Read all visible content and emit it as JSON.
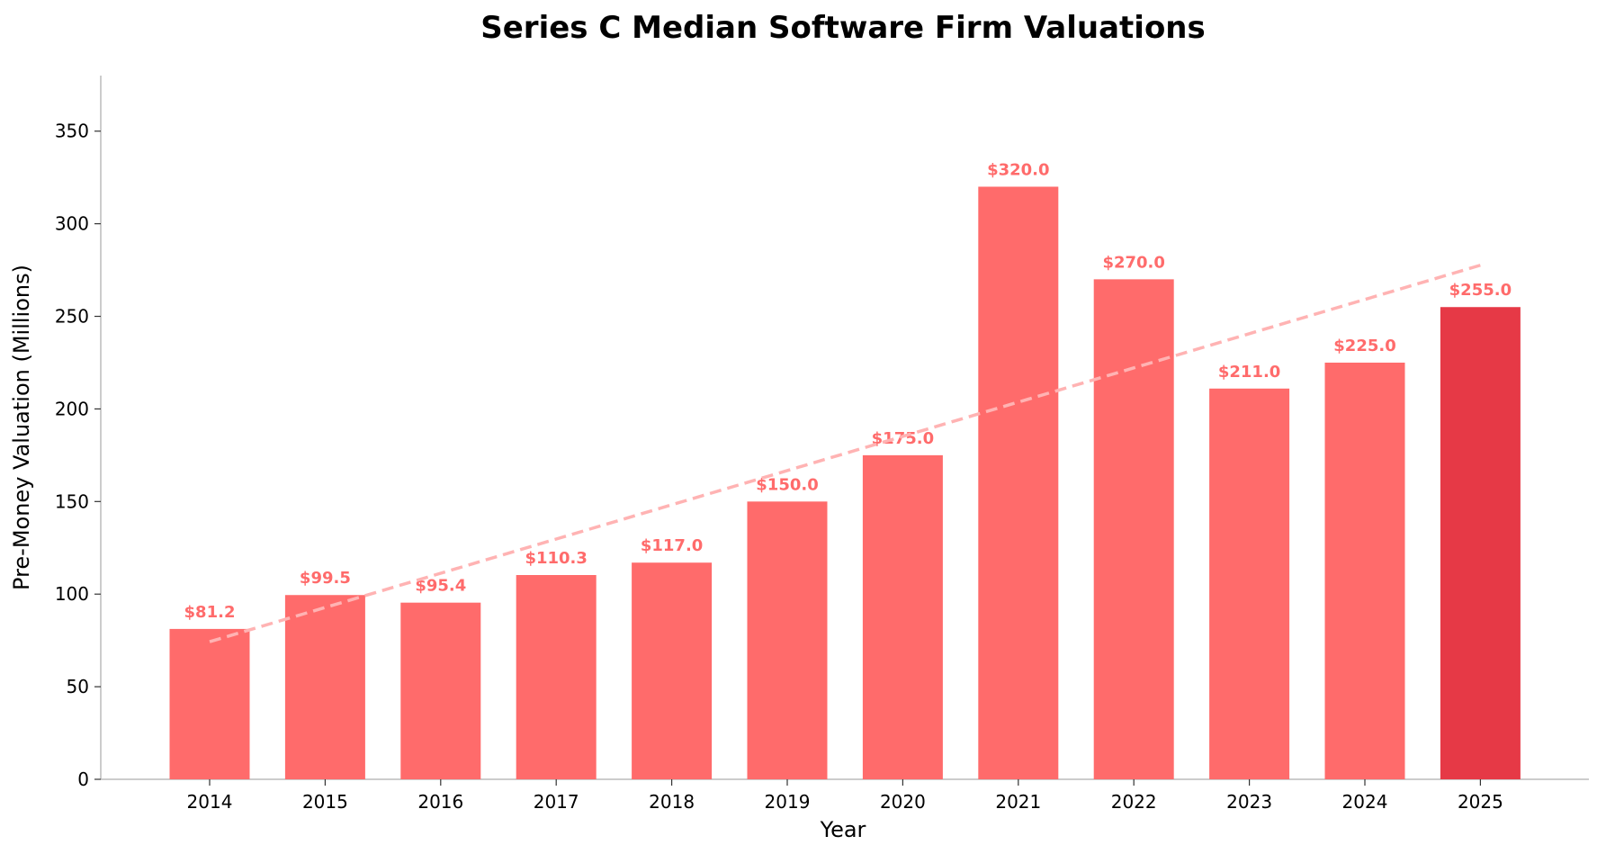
{
  "chart_data": {
    "type": "bar",
    "title": "Series C Median Software Firm Valuations",
    "xlabel": "Year",
    "ylabel": "Pre-Money Valuation (Millions)",
    "categories": [
      "2014",
      "2015",
      "2016",
      "2017",
      "2018",
      "2019",
      "2020",
      "2021",
      "2022",
      "2023",
      "2024",
      "2025"
    ],
    "values": [
      81.2,
      99.5,
      95.4,
      110.3,
      117.0,
      150.0,
      175.0,
      320.0,
      270.0,
      211.0,
      225.0,
      255.0
    ],
    "data_labels": [
      "$81.2",
      "$99.5",
      "$95.4",
      "$110.3",
      "$117.0",
      "$150.0",
      "$175.0",
      "$320.0",
      "$270.0",
      "$211.0",
      "$225.0",
      "$255.0"
    ],
    "ylim": [
      0,
      380
    ],
    "yticks": [
      0,
      50,
      100,
      150,
      200,
      250,
      300,
      350
    ],
    "grid": false,
    "colors": {
      "bar": "#ff6b6b",
      "highlight_bar": "#e63946",
      "label": "#ff6b6b",
      "trend": "#ffb3b3",
      "axis": "#bbbbbb"
    },
    "highlight_index": 11,
    "trend_line": {
      "style": "dashed",
      "start": [
        2014,
        74.3
      ],
      "end": [
        2025,
        277.6
      ]
    }
  }
}
